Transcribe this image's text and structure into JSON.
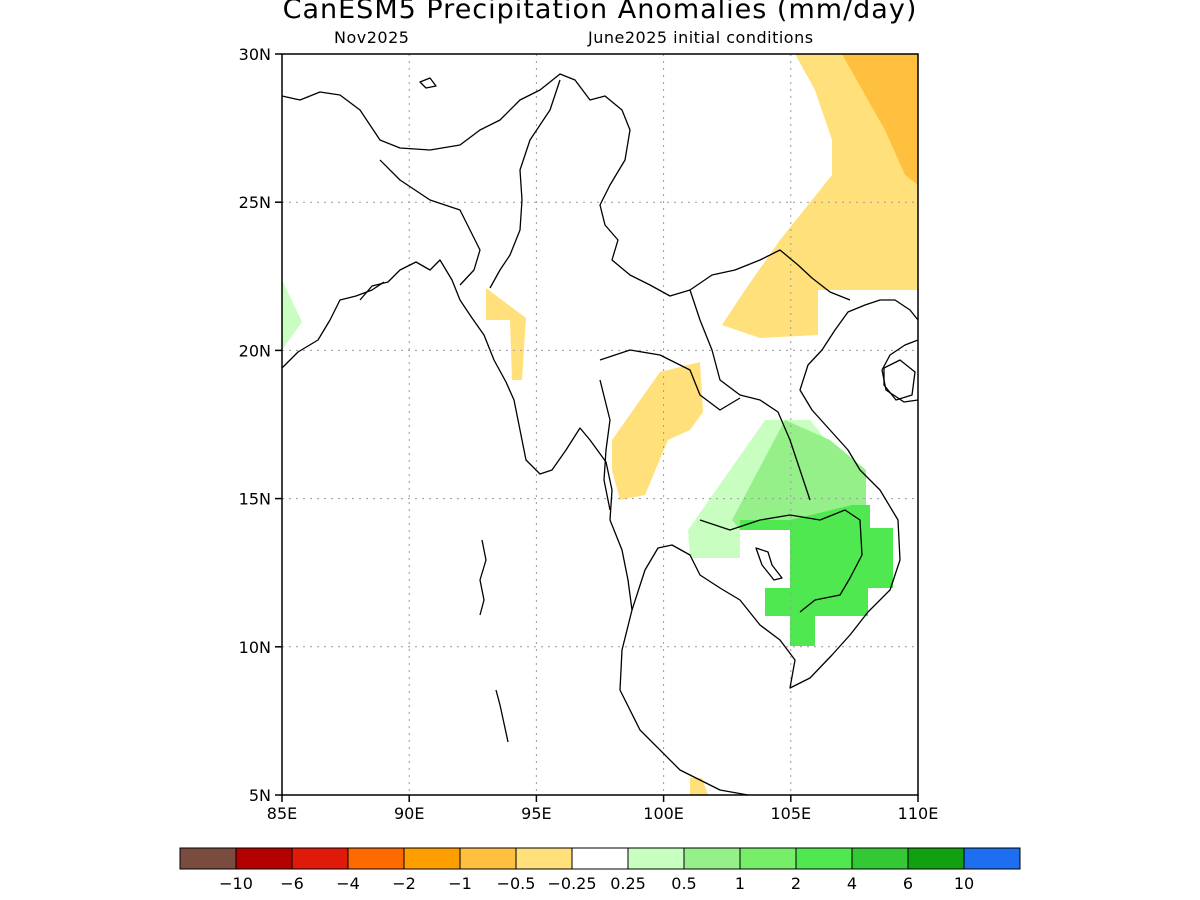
{
  "header": {
    "title": "CanESM5 Precipitation Anomalies (mm/day)",
    "subtitle_left": "Nov2025",
    "subtitle_right": "June2025 initial conditions"
  },
  "map": {
    "lon_range": [
      85,
      110
    ],
    "lat_range": [
      5,
      30
    ],
    "lon_ticks": [
      "85E",
      "90E",
      "95E",
      "100E",
      "105E",
      "110E"
    ],
    "lat_ticks": [
      "30N",
      "25N",
      "20N",
      "15N",
      "10N",
      "5N"
    ],
    "gridlines": true
  },
  "legend": {
    "colors": [
      "#7a4b3f",
      "#b30000",
      "#e01a0a",
      "#ff6a00",
      "#ff9e00",
      "#ffc040",
      "#ffe07a",
      "#ffffff",
      "#c8ffc0",
      "#96f08a",
      "#76ee6a",
      "#50e850",
      "#34c834",
      "#10a010",
      "#1e6ef0"
    ],
    "labels": [
      "-10",
      "-6",
      "-4",
      "-2",
      "-1",
      "-0.5",
      "-0.25",
      "0.25",
      "0.5",
      "1",
      "2",
      "4",
      "6",
      "10"
    ]
  },
  "colors": {
    "light_orange": "#ffe07a",
    "orange": "#ffc040",
    "pale_green": "#c8ffc0",
    "light_green": "#96f08a",
    "green": "#50e850"
  }
}
